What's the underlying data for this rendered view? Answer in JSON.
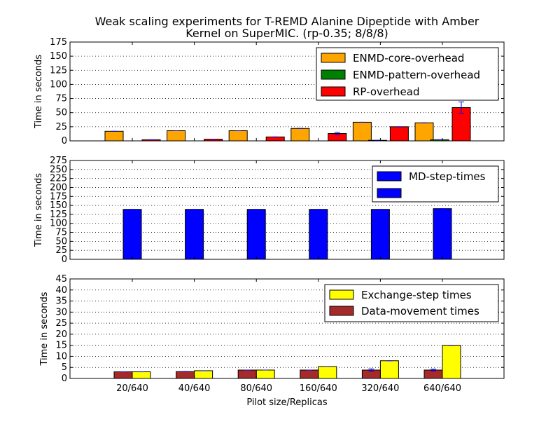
{
  "chart_data": [
    {
      "type": "bar",
      "title_lines": [
        "Weak scaling experiments for T-REMD Alanine Dipeptide with Amber",
        "Kernel on SuperMIC. (rp-0.35; 8/8/8)"
      ],
      "ylabel": "Time in seconds",
      "xlabel": "",
      "ylim": [
        0,
        175
      ],
      "yticks": [
        0,
        25,
        50,
        75,
        100,
        125,
        150,
        175
      ],
      "grid": true,
      "legend_placement": "top-right",
      "categories": [
        "20/640",
        "40/640",
        "80/640",
        "160/640",
        "320/640",
        "640/640"
      ],
      "series": [
        {
          "name": "ENMD-core-overhead",
          "color": "#ffa500",
          "values": [
            17,
            18,
            18,
            22,
            33,
            32
          ],
          "errors": [
            0,
            0,
            0,
            0,
            0,
            0
          ]
        },
        {
          "name": "ENMD-pattern-overhead",
          "color": "#008000",
          "values": [
            0,
            0,
            0,
            0,
            1,
            2
          ],
          "errors": [
            0,
            0,
            0,
            0,
            0,
            0
          ]
        },
        {
          "name": "RP-overhead",
          "color": "#ff0000",
          "values": [
            2,
            3,
            7,
            13,
            25,
            59
          ],
          "errors": [
            0,
            0,
            0,
            2,
            0,
            10
          ]
        }
      ]
    },
    {
      "type": "bar",
      "ylabel": "Time in seconds",
      "xlabel": "",
      "ylim": [
        0,
        275
      ],
      "yticks": [
        0,
        25,
        50,
        75,
        100,
        125,
        150,
        175,
        200,
        225,
        250,
        275
      ],
      "grid": true,
      "legend_placement": "top-right",
      "categories": [
        "20/640",
        "40/640",
        "80/640",
        "160/640",
        "320/640",
        "640/640"
      ],
      "series": [
        {
          "name": "MD-step-times",
          "color": "#0000ff",
          "values": [
            139,
            139,
            139,
            139,
            139,
            141
          ],
          "errors": [
            0,
            0,
            0,
            0,
            0,
            0
          ]
        },
        {
          "name": "",
          "color": "#0000ff",
          "values": [
            0,
            0,
            0,
            0,
            0,
            0
          ],
          "errors": [
            0,
            0,
            0,
            0,
            0,
            0
          ]
        }
      ]
    },
    {
      "type": "bar",
      "ylabel": "Time in seconds",
      "xlabel": "Pilot size/Replicas",
      "ylim": [
        0,
        45
      ],
      "yticks": [
        0,
        5,
        10,
        15,
        20,
        25,
        30,
        35,
        40,
        45
      ],
      "grid": true,
      "legend_placement": "top-right",
      "categories": [
        "20/640",
        "40/640",
        "80/640",
        "160/640",
        "320/640",
        "640/640"
      ],
      "series": [
        {
          "name": "Exchange-step times",
          "color": "#ffff00",
          "values": [
            3,
            3.5,
            3.8,
            5.4,
            8,
            15
          ],
          "errors": [
            0,
            0,
            0,
            0,
            0,
            0
          ]
        },
        {
          "name": "Data-movement times",
          "color": "#a52a2a",
          "values": [
            3,
            3.1,
            3.8,
            3.8,
            3.8,
            3.8
          ],
          "errors": [
            0,
            0,
            0,
            0,
            0.5,
            0.4
          ]
        }
      ]
    }
  ]
}
